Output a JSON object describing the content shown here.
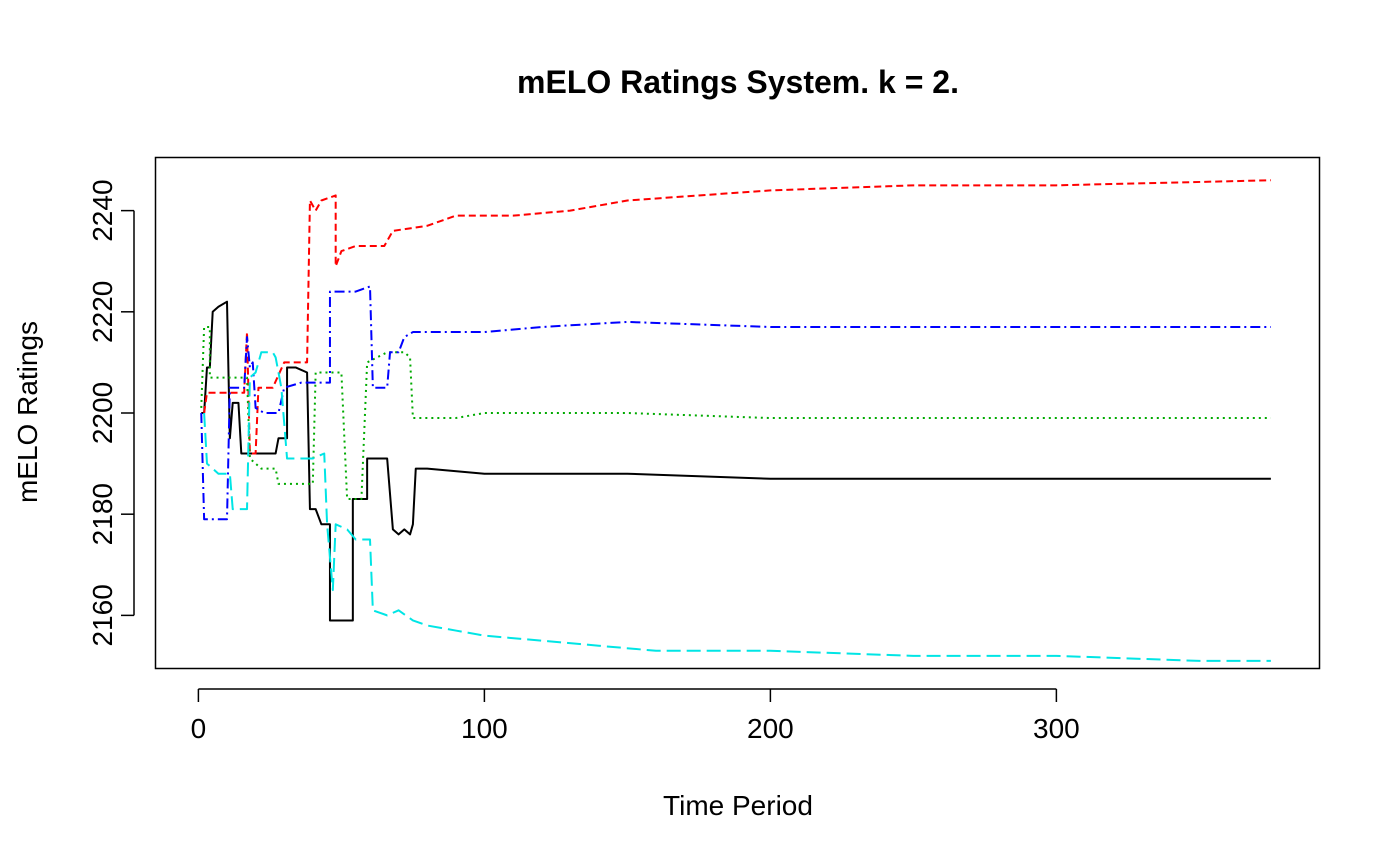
{
  "chart_data": {
    "type": "line",
    "title": "mELO Ratings System. k = 2.",
    "xlabel": "Time Period",
    "ylabel": "mELO Ratings",
    "xlim": [
      -15,
      392
    ],
    "ylim": [
      2149.5,
      2250.5
    ],
    "xticks": [
      0,
      100,
      200,
      300
    ],
    "yticks": [
      2160,
      2180,
      2200,
      2220,
      2240
    ],
    "grid": false,
    "legend": "none",
    "series": [
      {
        "color": "#000000",
        "dash": "solid",
        "points": [
          [
            1,
            2200
          ],
          [
            2,
            2200
          ],
          [
            3,
            2209
          ],
          [
            4,
            2209
          ],
          [
            5,
            2220
          ],
          [
            7,
            2221
          ],
          [
            10,
            2222
          ],
          [
            11,
            2195
          ],
          [
            12,
            2202
          ],
          [
            14,
            2202
          ],
          [
            15,
            2192
          ],
          [
            18,
            2192
          ],
          [
            23,
            2192
          ],
          [
            27,
            2192
          ],
          [
            28,
            2195
          ],
          [
            31,
            2195
          ],
          [
            31,
            2209
          ],
          [
            34,
            2209
          ],
          [
            38,
            2208
          ],
          [
            39,
            2181
          ],
          [
            41,
            2181
          ],
          [
            43,
            2178
          ],
          [
            46,
            2178
          ],
          [
            46,
            2159
          ],
          [
            54,
            2159
          ],
          [
            54,
            2183
          ],
          [
            59,
            2183
          ],
          [
            59,
            2191
          ],
          [
            66,
            2191
          ],
          [
            68,
            2177
          ],
          [
            70,
            2176
          ],
          [
            72,
            2177
          ],
          [
            74,
            2176
          ],
          [
            75,
            2178
          ],
          [
            76,
            2189
          ],
          [
            80,
            2189
          ],
          [
            100,
            2188
          ],
          [
            120,
            2188
          ],
          [
            150,
            2188
          ],
          [
            200,
            2187
          ],
          [
            300,
            2187
          ],
          [
            375,
            2187
          ]
        ]
      },
      {
        "color": "#ff0000",
        "dash": "7,4",
        "points": [
          [
            2,
            2200
          ],
          [
            3,
            2204
          ],
          [
            10,
            2204
          ],
          [
            16,
            2204
          ],
          [
            17,
            2216
          ],
          [
            18,
            2192
          ],
          [
            20,
            2192
          ],
          [
            21,
            2205
          ],
          [
            26,
            2205
          ],
          [
            30,
            2210
          ],
          [
            38,
            2210
          ],
          [
            39,
            2242
          ],
          [
            41,
            2240
          ],
          [
            43,
            2242
          ],
          [
            48,
            2243
          ],
          [
            48,
            2229
          ],
          [
            50,
            2232
          ],
          [
            55,
            2233
          ],
          [
            65,
            2233
          ],
          [
            68,
            2236
          ],
          [
            80,
            2237
          ],
          [
            90,
            2239
          ],
          [
            110,
            2239
          ],
          [
            130,
            2240
          ],
          [
            150,
            2242
          ],
          [
            200,
            2244
          ],
          [
            250,
            2245
          ],
          [
            300,
            2245
          ],
          [
            375,
            2246
          ]
        ]
      },
      {
        "color": "#00aa00",
        "dash": "2,4",
        "points": [
          [
            1,
            2201
          ],
          [
            2,
            2217
          ],
          [
            4,
            2217
          ],
          [
            4,
            2207
          ],
          [
            10,
            2207
          ],
          [
            15,
            2207
          ],
          [
            17,
            2207
          ],
          [
            18,
            2191
          ],
          [
            22,
            2189
          ],
          [
            27,
            2189
          ],
          [
            28,
            2186
          ],
          [
            33,
            2186
          ],
          [
            38,
            2186
          ],
          [
            40,
            2186
          ],
          [
            41,
            2208
          ],
          [
            45,
            2208
          ],
          [
            48,
            2208
          ],
          [
            50,
            2208
          ],
          [
            52,
            2183
          ],
          [
            57,
            2183
          ],
          [
            59,
            2210
          ],
          [
            66,
            2212
          ],
          [
            72,
            2212
          ],
          [
            74,
            2211
          ],
          [
            75,
            2199
          ],
          [
            80,
            2199
          ],
          [
            90,
            2199
          ],
          [
            100,
            2200
          ],
          [
            150,
            2200
          ],
          [
            200,
            2199
          ],
          [
            300,
            2199
          ],
          [
            375,
            2199
          ]
        ]
      },
      {
        "color": "#0000ff",
        "dash": "10,4,2,4",
        "points": [
          [
            1,
            2200
          ],
          [
            2,
            2179
          ],
          [
            10,
            2179
          ],
          [
            11,
            2205
          ],
          [
            14,
            2205
          ],
          [
            16,
            2205
          ],
          [
            17,
            2215
          ],
          [
            18,
            2209
          ],
          [
            19,
            2210
          ],
          [
            20,
            2201
          ],
          [
            23,
            2200
          ],
          [
            28,
            2200
          ],
          [
            30,
            2205
          ],
          [
            36,
            2206
          ],
          [
            44,
            2206
          ],
          [
            46,
            2206
          ],
          [
            46,
            2224
          ],
          [
            55,
            2224
          ],
          [
            60,
            2225
          ],
          [
            61,
            2205
          ],
          [
            66,
            2205
          ],
          [
            67,
            2212
          ],
          [
            70,
            2212
          ],
          [
            72,
            2215
          ],
          [
            75,
            2216
          ],
          [
            100,
            2216
          ],
          [
            120,
            2217
          ],
          [
            150,
            2218
          ],
          [
            200,
            2217
          ],
          [
            250,
            2217
          ],
          [
            300,
            2217
          ],
          [
            375,
            2217
          ]
        ]
      },
      {
        "color": "#00e5e5",
        "dash": "14,6",
        "points": [
          [
            2,
            2200
          ],
          [
            3,
            2190
          ],
          [
            7,
            2188
          ],
          [
            11,
            2188
          ],
          [
            12,
            2181
          ],
          [
            17,
            2181
          ],
          [
            18,
            2207
          ],
          [
            20,
            2208
          ],
          [
            22,
            2212
          ],
          [
            24,
            2212
          ],
          [
            26,
            2212
          ],
          [
            27,
            2211
          ],
          [
            29,
            2205
          ],
          [
            31,
            2191
          ],
          [
            36,
            2191
          ],
          [
            40,
            2191
          ],
          [
            44,
            2192
          ],
          [
            45,
            2178
          ],
          [
            47,
            2165
          ],
          [
            48,
            2178
          ],
          [
            52,
            2177
          ],
          [
            55,
            2175
          ],
          [
            60,
            2175
          ],
          [
            61,
            2161
          ],
          [
            66,
            2160
          ],
          [
            70,
            2161
          ],
          [
            75,
            2159
          ],
          [
            80,
            2158
          ],
          [
            90,
            2157
          ],
          [
            100,
            2156
          ],
          [
            120,
            2155
          ],
          [
            140,
            2154
          ],
          [
            160,
            2153
          ],
          [
            200,
            2153
          ],
          [
            250,
            2152
          ],
          [
            300,
            2152
          ],
          [
            350,
            2151
          ],
          [
            375,
            2151
          ]
        ]
      }
    ]
  }
}
